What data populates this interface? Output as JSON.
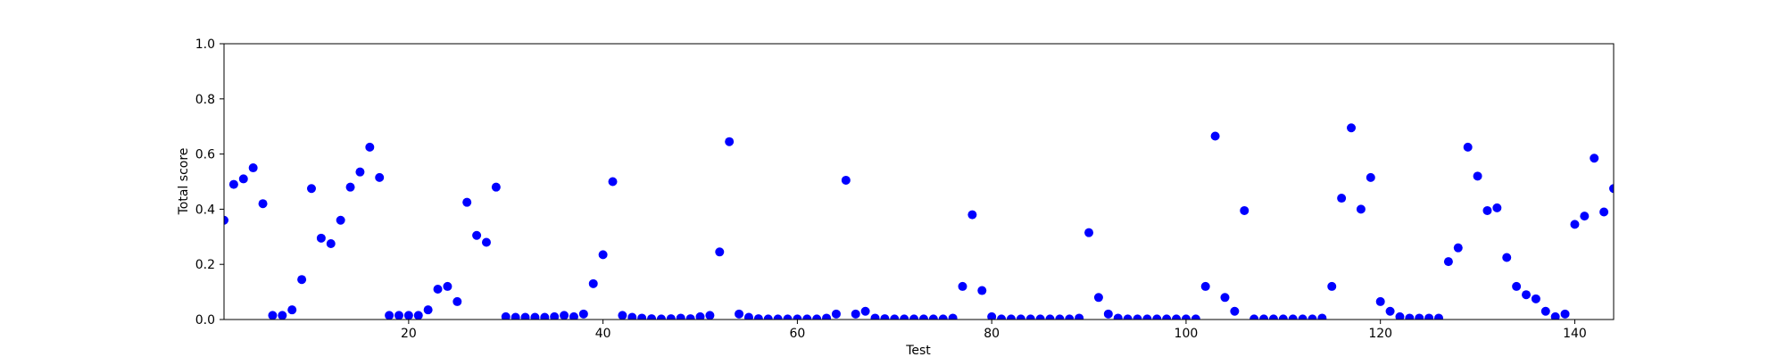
{
  "chart_data": {
    "type": "scatter",
    "title": "",
    "xlabel": "Test",
    "ylabel": "Total score",
    "xlim": [
      1,
      144
    ],
    "ylim": [
      0.0,
      1.0
    ],
    "xticks": [
      20,
      40,
      60,
      80,
      100,
      120,
      140
    ],
    "yticks": [
      0.0,
      0.2,
      0.4,
      0.6,
      0.8,
      1.0
    ],
    "xtick_labels": [
      "20",
      "40",
      "60",
      "80",
      "100",
      "120",
      "140"
    ],
    "ytick_labels": [
      "0.0",
      "0.2",
      "0.4",
      "0.6",
      "0.8",
      "1.0"
    ],
    "grid": false,
    "marker_color": "#0000ff",
    "series": [
      {
        "x": [
          1,
          2,
          3,
          4,
          5,
          6,
          7,
          8,
          9,
          10,
          11,
          12,
          13,
          14,
          15,
          16,
          17,
          18,
          19,
          20,
          21,
          22,
          23,
          24,
          25,
          26,
          27,
          28,
          29,
          30,
          31,
          32,
          33,
          34,
          35,
          36,
          37,
          38,
          39,
          40,
          41,
          42,
          43,
          44,
          45,
          46,
          47,
          48,
          49,
          50,
          51,
          52,
          53,
          54,
          55,
          56,
          57,
          58,
          59,
          60,
          61,
          62,
          63,
          64,
          65,
          66,
          67,
          68,
          69,
          70,
          71,
          72,
          73,
          74,
          75,
          76,
          77,
          78,
          79,
          80,
          81,
          82,
          83,
          84,
          85,
          86,
          87,
          88,
          89,
          90,
          91,
          92,
          93,
          94,
          95,
          96,
          97,
          98,
          99,
          100,
          101,
          102,
          103,
          104,
          105,
          106,
          107,
          108,
          109,
          110,
          111,
          112,
          113,
          114,
          115,
          116,
          117,
          118,
          119,
          120,
          121,
          122,
          123,
          124,
          125,
          126,
          127,
          128,
          129,
          130,
          131,
          132,
          133,
          134,
          135,
          136,
          137,
          138,
          139,
          140,
          141,
          142,
          143,
          144
        ],
        "y": [
          0.36,
          0.49,
          0.51,
          0.55,
          0.42,
          0.015,
          0.015,
          0.035,
          0.145,
          0.475,
          0.295,
          0.275,
          0.36,
          0.48,
          0.535,
          0.625,
          0.515,
          0.015,
          0.015,
          0.015,
          0.015,
          0.035,
          0.11,
          0.12,
          0.065,
          0.425,
          0.305,
          0.28,
          0.48,
          0.01,
          0.008,
          0.008,
          0.008,
          0.008,
          0.01,
          0.015,
          0.01,
          0.02,
          0.13,
          0.235,
          0.5,
          0.015,
          0.008,
          0.005,
          0.003,
          0.002,
          0.003,
          0.005,
          0.003,
          0.01,
          0.015,
          0.245,
          0.645,
          0.02,
          0.008,
          0.003,
          0.002,
          0.002,
          0.002,
          0.002,
          0.002,
          0.002,
          0.005,
          0.02,
          0.505,
          0.02,
          0.03,
          0.005,
          0.003,
          0.002,
          0.002,
          0.002,
          0.002,
          0.002,
          0.002,
          0.005,
          0.12,
          0.38,
          0.105,
          0.01,
          0.002,
          0.002,
          0.002,
          0.002,
          0.002,
          0.002,
          0.002,
          0.002,
          0.005,
          0.315,
          0.08,
          0.02,
          0.005,
          0.002,
          0.002,
          0.002,
          0.002,
          0.002,
          0.002,
          0.002,
          0.002,
          0.12,
          0.665,
          0.08,
          0.03,
          0.395,
          0.002,
          0.002,
          0.002,
          0.002,
          0.002,
          0.002,
          0.002,
          0.005,
          0.12,
          0.44,
          0.695,
          0.4,
          0.515,
          0.065,
          0.03,
          0.01,
          0.005,
          0.005,
          0.005,
          0.005,
          0.21,
          0.26,
          0.625,
          0.52,
          0.395,
          0.405,
          0.225,
          0.12,
          0.09,
          0.075,
          0.03,
          0.01,
          0.02,
          0.345,
          0.375,
          0.585,
          0.39,
          0.475
        ]
      }
    ]
  }
}
